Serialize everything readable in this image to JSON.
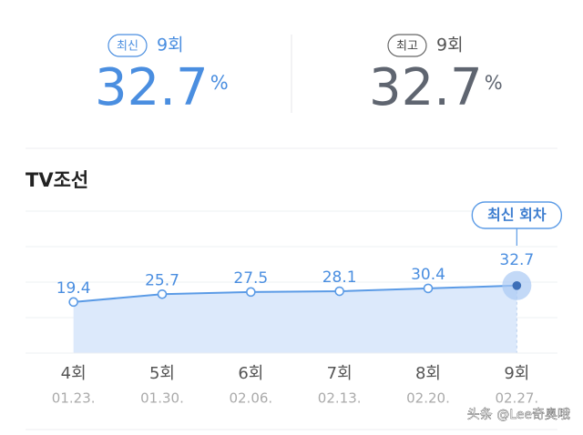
{
  "stats": [
    {
      "badge": "최신",
      "episode": "9회",
      "value": 32.7,
      "unit": "%",
      "color": "#4a8ee0"
    },
    {
      "badge": "최고",
      "episode": "9회",
      "value": 32.7,
      "unit": "%",
      "color": "#5f6570"
    }
  ],
  "chart_data": {
    "type": "area",
    "title": "TV조선",
    "categories": [
      "4회",
      "5회",
      "6회",
      "7회",
      "8회",
      "9회"
    ],
    "dates": [
      "01.23.",
      "01.30.",
      "02.06.",
      "02.13.",
      "02.20.",
      "02.27."
    ],
    "values": [
      19.4,
      25.7,
      27.5,
      28.1,
      30.4,
      32.7
    ],
    "ylim": [
      -22,
      93
    ],
    "color": "#5b9be6",
    "annotation": "최신 회차"
  },
  "watermark": "头条 @Lee奇奥哦"
}
